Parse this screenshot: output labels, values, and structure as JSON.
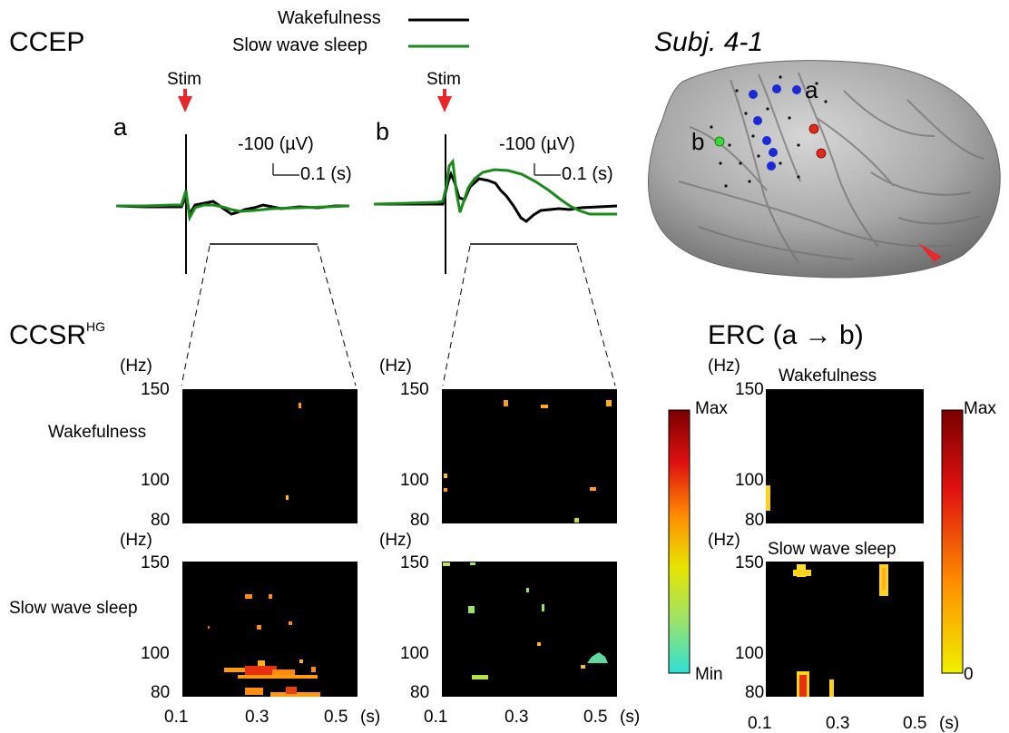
{
  "ccep": {
    "title": "CCEP",
    "legend": [
      {
        "label": "Wakefulness",
        "color": "#000000"
      },
      {
        "label": "Slow wave sleep",
        "color": "#1a8a1a"
      }
    ],
    "stim_label": "Stim",
    "panel_a": {
      "letter": "a",
      "scale_amp": "-100 (µV)",
      "scale_time": "0.1 (s)"
    },
    "panel_b": {
      "letter": "b",
      "scale_amp": "-100 (µV)",
      "scale_time": "0.1 (s)"
    }
  },
  "brain": {
    "subject": "Subj. 4-1",
    "label_a": "a",
    "label_b": "b",
    "electrode_colors": {
      "blue": "#1a2bd6",
      "red": "#e02a1a",
      "green": "#33dd33",
      "arrow": "#e8282c"
    }
  },
  "ccsr": {
    "title": "CCSR",
    "superscript": "HG",
    "unit_hz": "(Hz)",
    "row_labels": [
      "Wakefulness",
      "Slow wave sleep"
    ],
    "y_ticks": [
      "150",
      "100",
      "80"
    ],
    "x_ticks": [
      "0.1",
      "0.3",
      "0.5"
    ],
    "x_unit": "(s)",
    "colorbar": {
      "max": "Max",
      "min": "Min"
    }
  },
  "erc": {
    "title": "ERC (a → b)",
    "unit_hz": "(Hz)",
    "row_labels": [
      "Wakefulness",
      "Slow wave sleep"
    ],
    "y_ticks": [
      "150",
      "100",
      "80"
    ],
    "x_ticks": [
      "0.1",
      "0.3",
      "0.5"
    ],
    "x_unit": "(s)",
    "colorbar": {
      "max": "Max",
      "min": "0"
    }
  }
}
